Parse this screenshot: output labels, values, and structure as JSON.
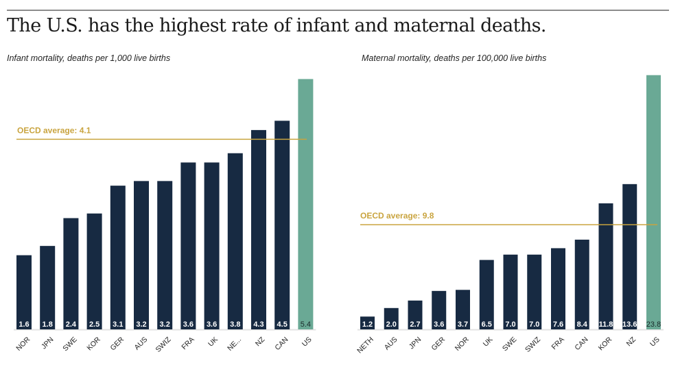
{
  "title": "The U.S. has the highest rate of infant and maternal deaths.",
  "colors": {
    "bar": "#172a42",
    "highlight": "#6aa995",
    "average_line": "#c9a43f",
    "baseline": "#e3e3e3"
  },
  "chart_data": [
    {
      "type": "bar",
      "title": "Infant mortality, deaths per 1,000 live births",
      "categories": [
        "NOR",
        "JPN",
        "SWE",
        "KOR",
        "GER",
        "AUS",
        "SWIZ",
        "FRA",
        "UK",
        "NE...",
        "NZ",
        "CAN",
        "US"
      ],
      "values": [
        1.6,
        1.8,
        2.4,
        2.5,
        3.1,
        3.2,
        3.2,
        3.6,
        3.6,
        3.8,
        4.3,
        4.5,
        5.4
      ],
      "value_labels": [
        "1.6",
        "1.8",
        "2.4",
        "2.5",
        "3.1",
        "3.2",
        "3.2",
        "3.6",
        "3.6",
        "3.8",
        "4.3",
        "4.5",
        "5.4"
      ],
      "highlight": "US",
      "reference_line": {
        "label": "OECD average: 4.1",
        "value": 4.1
      },
      "grid": false
    },
    {
      "type": "bar",
      "title": "Maternal mortality, deaths per 100,000 live births",
      "categories": [
        "NETH",
        "AUS",
        "JPN",
        "GER",
        "NOR",
        "UK",
        "SWE",
        "SWIZ",
        "FRA",
        "CAN",
        "KOR",
        "NZ",
        "US"
      ],
      "values": [
        1.2,
        2.0,
        2.7,
        3.6,
        3.7,
        6.5,
        7.0,
        7.0,
        7.6,
        8.4,
        11.8,
        13.6,
        23.8
      ],
      "value_labels": [
        "1.2",
        "2.0",
        "2.7",
        "3.6",
        "3.7",
        "6.5",
        "7.0",
        "7.0",
        "7.6",
        "8.4",
        "11.8",
        "13.6",
        "23.8"
      ],
      "highlight": "US",
      "reference_line": {
        "label": "OECD average: 9.8",
        "value": 9.8
      },
      "grid": false
    }
  ]
}
